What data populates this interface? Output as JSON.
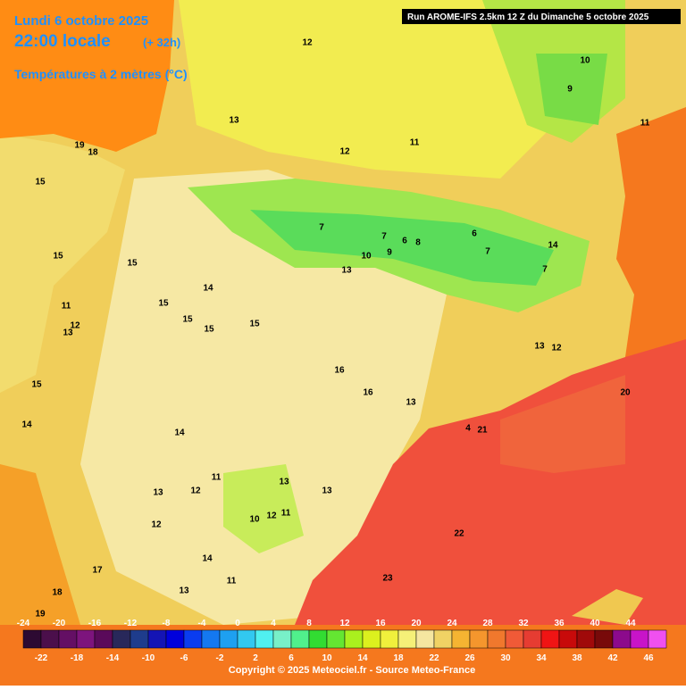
{
  "header": {
    "date": "Lundi 6 octobre 2025",
    "time": "22:00 locale",
    "lead": "(+ 32h)",
    "field": "Températures à 2 mètres (°C)",
    "run": "Run AROME-IFS 2.5km 12 Z du Dimanche 5 octobre 2025"
  },
  "map_labels": [
    12,
    13,
    11,
    12,
    19,
    18,
    15,
    10,
    9,
    11,
    7,
    7,
    6,
    8,
    9,
    10,
    6,
    7,
    7,
    14,
    13,
    15,
    15,
    14,
    15,
    11,
    12,
    13,
    15,
    15,
    13,
    12,
    15,
    16,
    16,
    13,
    4,
    21,
    20,
    14,
    15,
    14,
    11,
    13,
    13,
    13,
    12,
    11,
    10,
    12,
    12,
    17,
    14,
    13,
    11,
    18,
    19,
    22,
    23
  ],
  "scale": {
    "steps": [
      -24,
      -22,
      -20,
      -18,
      -16,
      -14,
      -12,
      -10,
      -8,
      -6,
      -4,
      -2,
      0,
      2,
      4,
      6,
      8,
      10,
      12,
      14,
      16,
      18,
      20,
      22,
      24,
      26,
      28,
      30,
      32,
      34,
      36,
      38,
      40,
      42,
      44,
      46
    ],
    "colors": [
      "#2d0a32",
      "#4b0f4b",
      "#640f64",
      "#7d147d",
      "#5a0a5a",
      "#28285a",
      "#1e3c8c",
      "#1414b4",
      "#0000dc",
      "#0a3cf0",
      "#1478f0",
      "#1ea0f0",
      "#32c8f0",
      "#50f0f0",
      "#78f0c8",
      "#50f08c",
      "#32dc32",
      "#64e632",
      "#aaf01e",
      "#dcf01e",
      "#f0f03c",
      "#f5f078",
      "#f5e6a0",
      "#f0d264",
      "#f5b432",
      "#f5962d",
      "#f0782d",
      "#f05a37",
      "#e63c32",
      "#f01414",
      "#c80a0a",
      "#a00a0a",
      "#780a0a",
      "#8c0a8c",
      "#c814c8",
      "#f050f0"
    ]
  },
  "footer": "Copyright © 2025 Meteociel.fr - Source Meteo-France"
}
